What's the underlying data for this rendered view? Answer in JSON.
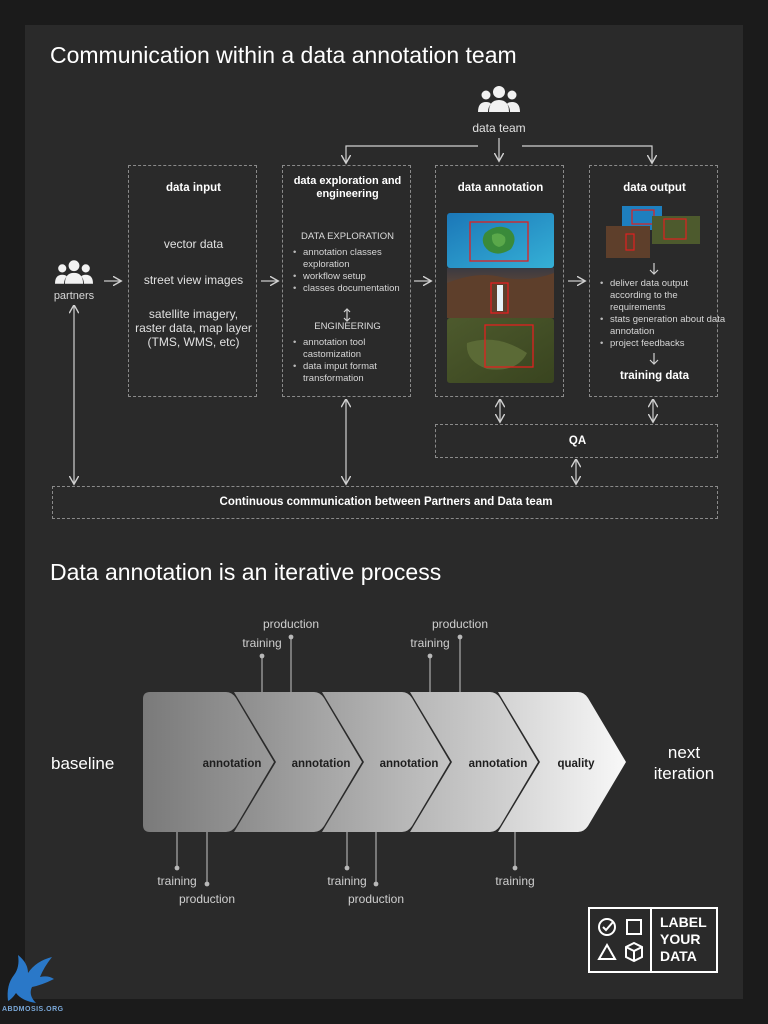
{
  "section1": {
    "title": "Communication within a data annotation team",
    "data_team_label": "data team",
    "partners_label": "partners",
    "boxes": {
      "input": {
        "heading": "data input",
        "items": [
          "vector data",
          "street view images",
          "satellite imagery, raster data, map layer (TMS, WMS, etc)"
        ]
      },
      "exploration": {
        "heading": "data exploration and engineering",
        "sub1": "DATA EXPLORATION",
        "list1": [
          "annotation classes exploration",
          "workflow setup",
          "classes documentation"
        ],
        "sub2": "ENGINEERING",
        "list2": [
          "annotation tool castomization",
          "data imput format transformation"
        ]
      },
      "annotation": {
        "heading": "data annotation"
      },
      "output": {
        "heading": "data output",
        "list": [
          "deliver data output according to the requirements",
          "stats generation about data annotation",
          "project feedbacks"
        ],
        "footer": "training data"
      }
    },
    "qa_label": "QA",
    "communication_label": "Continuous communication between Partners and Data team"
  },
  "section2": {
    "title": "Data annotation is an iterative process",
    "baseline": "baseline",
    "next_iteration": [
      "next",
      "iteration"
    ],
    "chevrons": [
      "annotation",
      "annotation",
      "annotation",
      "annotation",
      "quality"
    ],
    "top_labels": {
      "production": "production",
      "training": "training"
    },
    "bottom_labels": {
      "training": "training",
      "production": "production"
    }
  },
  "logo": {
    "text": [
      "LABEL",
      "YOUR",
      "DATA"
    ]
  },
  "watermark": "ABDMOSIS.ORG",
  "colors": {
    "background": "#1b1b1b",
    "panel": "#2a2a2a",
    "dashed_border": "#8a8a8a",
    "annotation_box": "#e02020"
  }
}
